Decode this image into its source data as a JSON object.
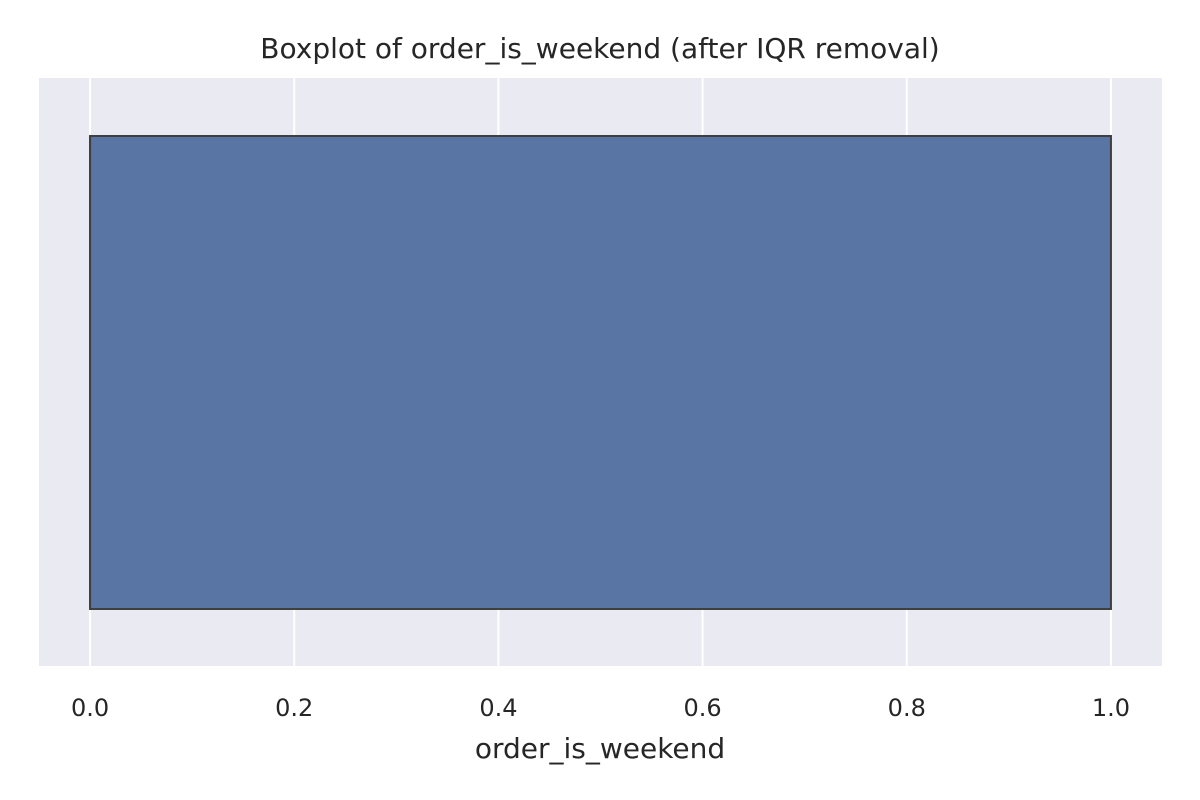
{
  "chart_data": {
    "type": "box",
    "orientation": "horizontal",
    "title": "Boxplot of order_is_weekend (after IQR removal)",
    "xlabel": "order_is_weekend",
    "ylabel": "",
    "xlim": [
      -0.05,
      1.05
    ],
    "xticks": [
      0.0,
      0.2,
      0.4,
      0.6,
      0.8,
      1.0
    ],
    "xtick_labels": [
      "0.0",
      "0.2",
      "0.4",
      "0.6",
      "0.8",
      "1.0"
    ],
    "grid": true,
    "series": [
      {
        "min": 0.0,
        "q1": 0.0,
        "median": 0.0,
        "q3": 1.0,
        "max": 1.0
      }
    ],
    "colors": {
      "plot_background": "#eaeaf2",
      "grid": "#ffffff",
      "box_fill": "#5975a4",
      "box_edge": "#3f3f3f",
      "text": "#262626"
    }
  }
}
